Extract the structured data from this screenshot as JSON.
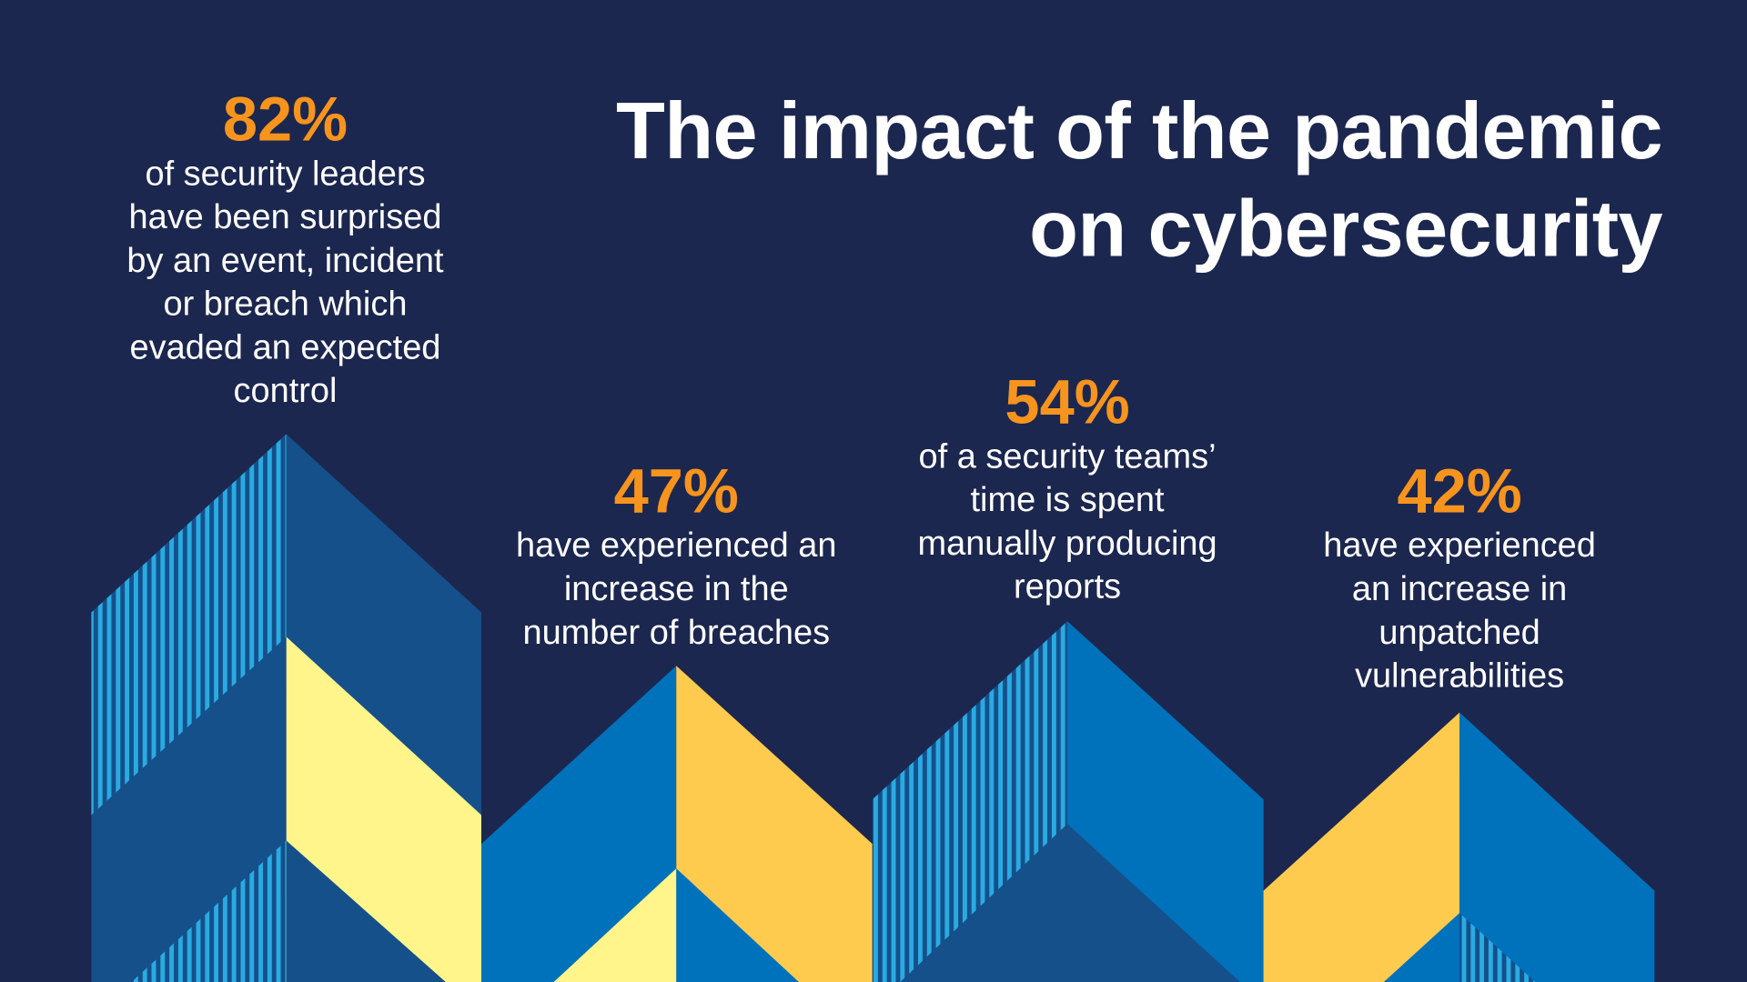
{
  "title": {
    "line1": "The impact of the pandemic",
    "line2": "on cybersecurity"
  },
  "stats": [
    {
      "value": "82%",
      "lines": [
        "of security leaders",
        "have been surprised",
        "by an event, incident",
        "or breach which",
        "evaded an expected",
        "control"
      ]
    },
    {
      "value": "47%",
      "lines": [
        "have experienced an",
        "increase in the",
        "number of breaches"
      ]
    },
    {
      "value": "54%",
      "lines": [
        "of a security teams’",
        "time is spent",
        "manually producing",
        "reports"
      ]
    },
    {
      "value": "42%",
      "lines": [
        "have experienced",
        "an increase in",
        "unpatched",
        "vulnerabilities"
      ]
    }
  ],
  "colors": {
    "background": "#1c274f",
    "accent_orange": "#f7941d",
    "dark_blue": "#15508a",
    "mid_blue": "#0072bc",
    "light_blue_stripe": "#29abe2",
    "pale_yellow": "#fff58a",
    "gold": "#ffcb4f"
  }
}
